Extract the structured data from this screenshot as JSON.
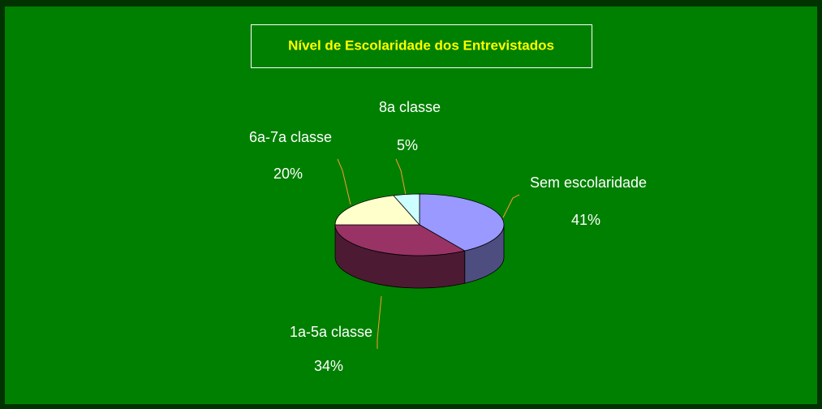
{
  "chart_data": {
    "type": "pie3d",
    "title": "Nível de Escolaridade dos Entrevistados",
    "categories": [
      "Sem escolaridade",
      "1a-5a classe",
      "6a-7a classe",
      "8a classe"
    ],
    "values": [
      41,
      34,
      20,
      5
    ],
    "value_labels": [
      "41%",
      "34%",
      "20%",
      "5%"
    ],
    "colors": [
      "#9999ff",
      "#993366",
      "#ffffcc",
      "#ccffff"
    ]
  }
}
